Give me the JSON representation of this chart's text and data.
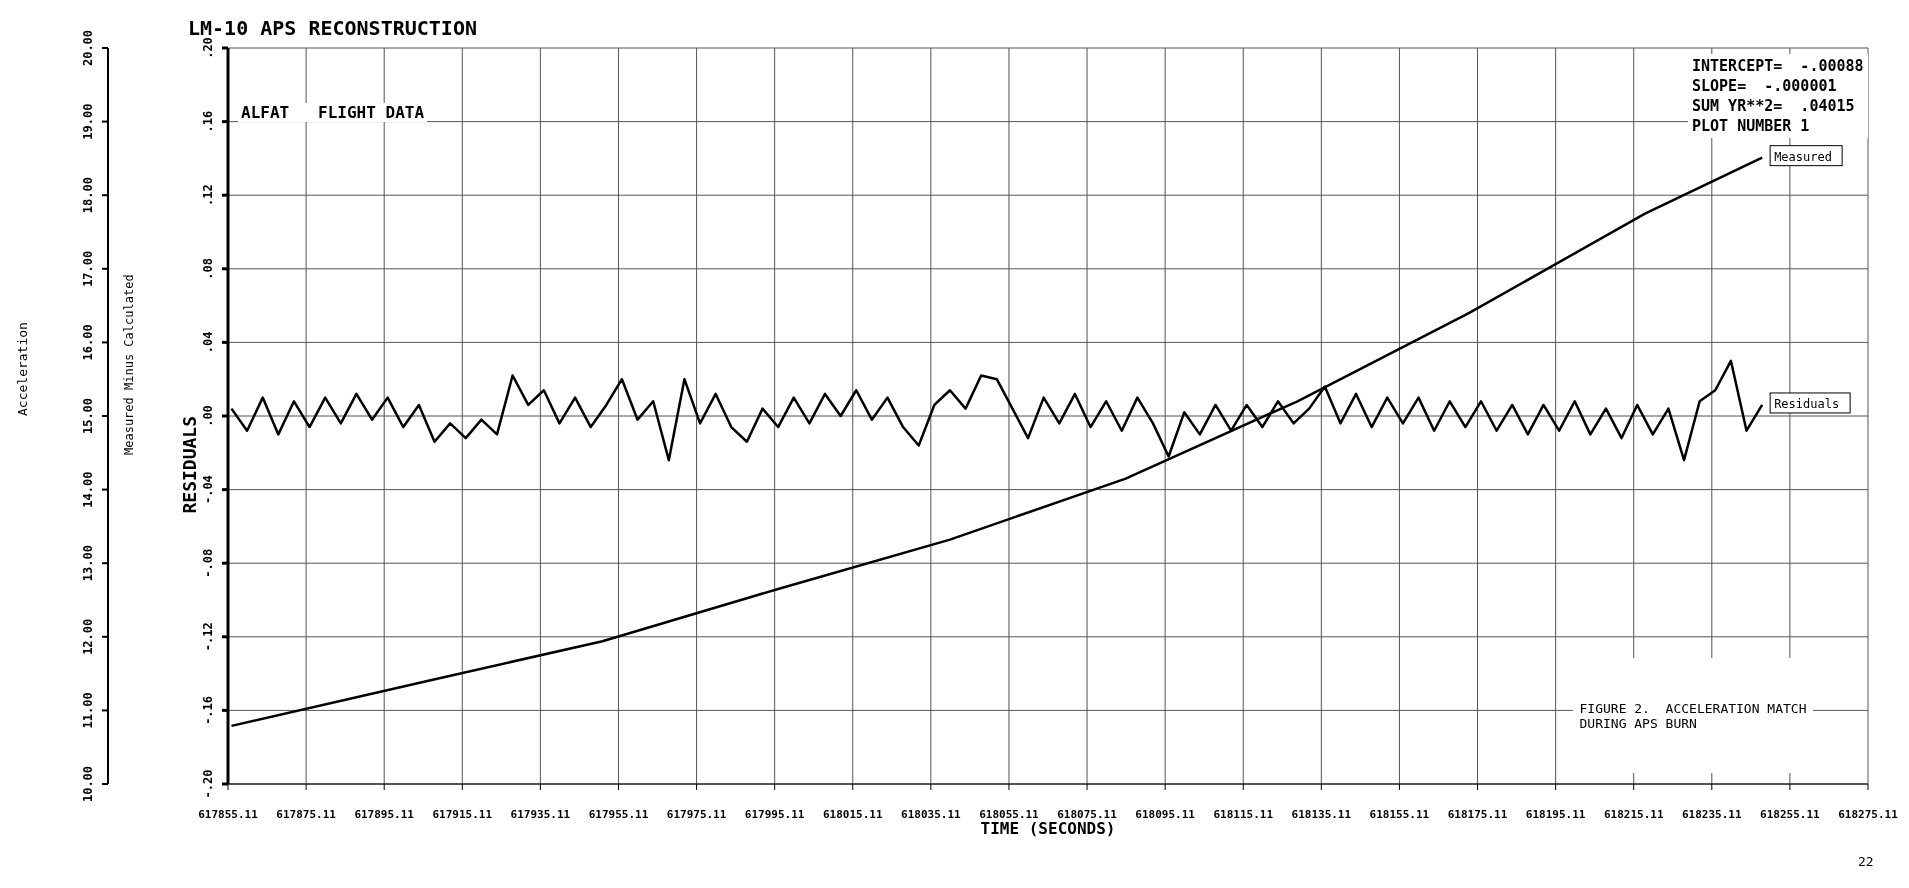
{
  "chart_data": {
    "type": "line",
    "title": "LM-10 APS RECONSTRUCTION",
    "subtitle": "ALFAT   FLIGHT DATA",
    "xlabel": "TIME (SECONDS)",
    "ylabel": "Acceleration",
    "y2label": "RESIDUALS",
    "annotations": [
      "INTERCEPT=  -.00088",
      "SLOPE=  -.000001",
      "SUM YR**2=  .04015",
      "PLOT NUMBER 1",
      "Measured Minus Calculated",
      "FIGURE 2.  ACCELERATION MATCH\nDURING APS BURN",
      "22"
    ],
    "xlim": [
      617855.11,
      618275.11
    ],
    "xticks": [
      617855.11,
      617875.11,
      617895.11,
      617915.11,
      617935.11,
      617955.11,
      617975.11,
      617995.11,
      618015.11,
      618035.11,
      618055.11,
      618075.11,
      618095.11,
      618115.11,
      618135.11,
      618155.11,
      618175.11,
      618195.11,
      618215.11,
      618235.11,
      618255.11,
      618275.11
    ],
    "ylim": [
      10,
      20
    ],
    "yticks": [
      {
        "value": 10,
        "label": "10.00"
      },
      {
        "value": 11,
        "label": "11.00"
      },
      {
        "value": 12,
        "label": "12.00"
      },
      {
        "value": 13,
        "label": "13.00"
      },
      {
        "value": 14,
        "label": "14.00"
      },
      {
        "value": 15,
        "label": "15.00"
      },
      {
        "value": 16,
        "label": "16.00"
      },
      {
        "value": 17,
        "label": "17.00"
      },
      {
        "value": 18,
        "label": "18.00"
      },
      {
        "value": 19,
        "label": "19.00"
      },
      {
        "value": 20,
        "label": "20.00"
      }
    ],
    "y2lim": [
      -0.2,
      0.2
    ],
    "y2ticks": [
      {
        "value": -0.2,
        "label": "-.20"
      },
      {
        "value": -0.16,
        "label": "-.16"
      },
      {
        "value": -0.12,
        "label": "-.12"
      },
      {
        "value": -0.08,
        "label": "-.08"
      },
      {
        "value": -0.04,
        "label": "-.04"
      },
      {
        "value": 0,
        "label": ".00"
      },
      {
        "value": 0.04,
        "label": ".04"
      },
      {
        "value": 0.08,
        "label": ".08"
      },
      {
        "value": 0.12,
        "label": ".12"
      },
      {
        "value": 0.16,
        "label": ".16"
      },
      {
        "value": 0.2,
        "label": ".20"
      }
    ],
    "grid": true,
    "legend": false,
    "marker": "none",
    "line_style": "solid",
    "series": [
      {
        "name": "Measured",
        "color": "#000000",
        "x": [
          617856,
          617907,
          617951,
          617996,
          618040,
          618085,
          618129,
          618173,
          618218,
          618248
        ],
        "values": [
          10.79,
          11.41,
          11.94,
          12.65,
          13.32,
          14.15,
          15.2,
          16.4,
          17.75,
          18.51
        ]
      },
      {
        "name": "Residuals",
        "color": "#000000",
        "axis": "y2",
        "x": [
          617856,
          617860,
          617864,
          617868,
          617872,
          617876,
          617880,
          617884,
          617888,
          617892,
          617896,
          617900,
          617904,
          617908,
          617912,
          617916,
          617920,
          617924,
          617928,
          617932,
          617936,
          617940,
          617944,
          617948,
          617952,
          617956,
          617960,
          617964,
          617968,
          617972,
          617976,
          617980,
          617984,
          617988,
          617992,
          617996,
          618000,
          618004,
          618008,
          618012,
          618016,
          618020,
          618024,
          618028,
          618032,
          618036,
          618040,
          618044,
          618048,
          618052,
          618056,
          618060,
          618064,
          618068,
          618072,
          618076,
          618080,
          618084,
          618088,
          618092,
          618096,
          618100,
          618104,
          618108,
          618112,
          618116,
          618120,
          618124,
          618128,
          618132,
          618136,
          618140,
          618144,
          618148,
          618152,
          618156,
          618160,
          618164,
          618168,
          618172,
          618176,
          618180,
          618184,
          618188,
          618192,
          618196,
          618200,
          618204,
          618208,
          618212,
          618216,
          618220,
          618224,
          618228,
          618232,
          618236,
          618240,
          618244,
          618248
        ],
        "values": [
          0.004,
          -0.008,
          0.01,
          -0.01,
          0.008,
          -0.006,
          0.01,
          -0.004,
          0.012,
          -0.002,
          0.01,
          -0.006,
          0.006,
          -0.014,
          -0.004,
          -0.012,
          -0.002,
          -0.01,
          0.022,
          0.006,
          0.014,
          -0.004,
          0.01,
          -0.006,
          0.006,
          0.02,
          -0.002,
          0.008,
          -0.024,
          0.02,
          -0.004,
          0.012,
          -0.006,
          -0.014,
          0.004,
          -0.006,
          0.01,
          -0.004,
          0.012,
          0,
          0.014,
          -0.002,
          0.01,
          -0.006,
          -0.016,
          0.006,
          0.014,
          0.004,
          0.022,
          0.02,
          0.004,
          -0.012,
          0.01,
          -0.004,
          0.012,
          -0.006,
          0.008,
          -0.008,
          0.01,
          -0.004,
          -0.022,
          0.002,
          -0.01,
          0.006,
          -0.008,
          0.006,
          -0.006,
          0.008,
          -0.004,
          0.004,
          0.016,
          -0.004,
          0.012,
          -0.006,
          0.01,
          -0.004,
          0.01,
          -0.008,
          0.008,
          -0.006,
          0.008,
          -0.008,
          0.006,
          -0.01,
          0.006,
          -0.008,
          0.008,
          -0.01,
          0.004,
          -0.012,
          0.006,
          -0.01,
          0.004,
          -0.024,
          0.008,
          0.014,
          0.03,
          -0.008,
          0.006
        ]
      }
    ]
  }
}
